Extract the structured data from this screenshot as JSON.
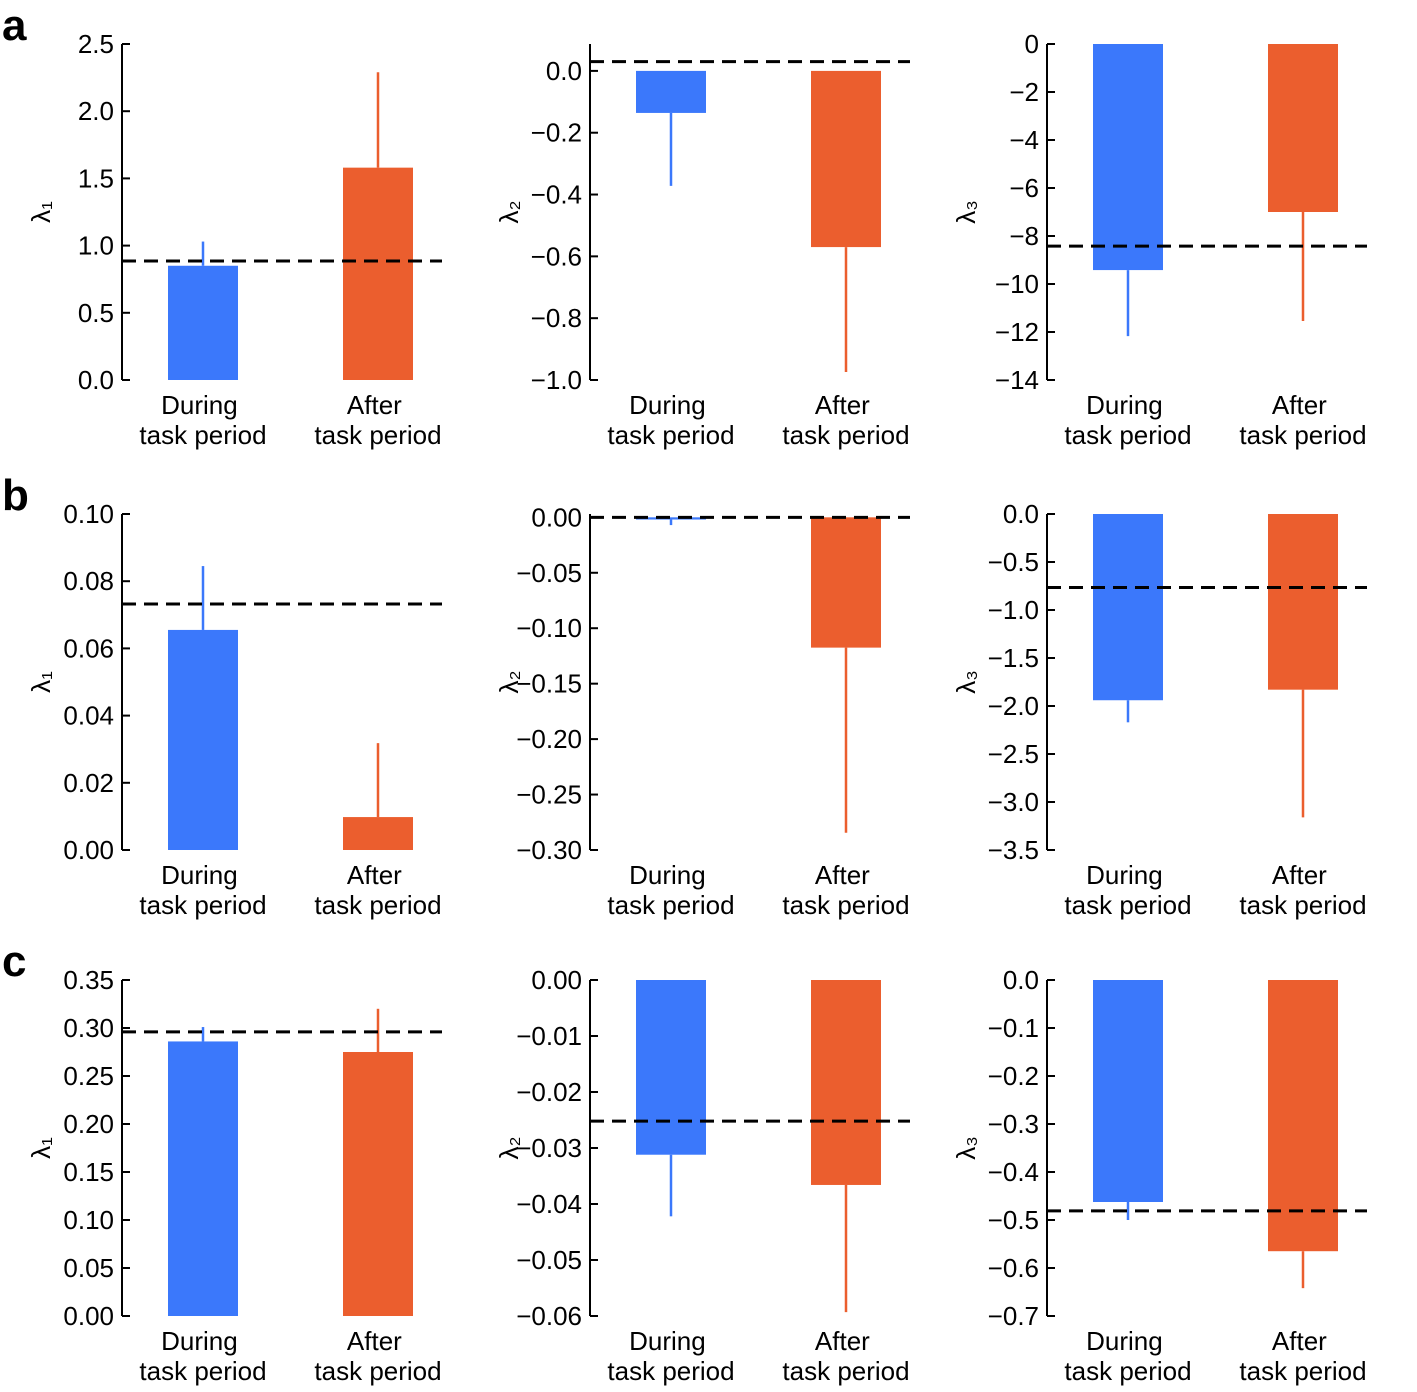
{
  "panel_labels": [
    "a",
    "b",
    "c"
  ],
  "chart_data": [
    {
      "type": "bar",
      "ylabel": "λ₁",
      "categories": [
        "During task period",
        "After task period"
      ],
      "values": [
        0.85,
        1.58
      ],
      "errors": [
        0.18,
        0.71
      ],
      "colors": [
        "#3b78fb",
        "#eb5e2e"
      ],
      "reference": 0.885,
      "ylim": [
        0,
        2.5
      ],
      "yticks": [
        {
          "value": 0,
          "label": "0.0"
        },
        0.5,
        {
          "value": 1,
          "label": "1.0"
        },
        1.5,
        {
          "value": 2,
          "label": "2.0"
        },
        2.5
      ]
    },
    {
      "type": "bar",
      "ylabel": "λ₂",
      "categories": [
        "During task period",
        "After task period"
      ],
      "values": [
        -0.136,
        -0.57
      ],
      "errors": [
        0.236,
        0.404
      ],
      "colors": [
        "#3b78fb",
        "#eb5e2e"
      ],
      "reference": 0.03,
      "ylim": [
        -1,
        0.087
      ],
      "yticks": [
        {
          "value": 0,
          "label": "0.0"
        },
        {
          "value": -0.2,
          "label": "−0.2"
        },
        {
          "value": -0.4,
          "label": "−0.4"
        },
        {
          "value": -0.6,
          "label": "−0.6"
        },
        {
          "value": -0.8,
          "label": "−0.8"
        },
        {
          "value": -1,
          "label": "−1.0"
        }
      ]
    },
    {
      "type": "bar",
      "ylabel": "λ₃",
      "categories": [
        "During task period",
        "After task period"
      ],
      "values": [
        -9.42,
        -7.0
      ],
      "errors": [
        2.75,
        4.54
      ],
      "colors": [
        "#3b78fb",
        "#eb5e2e"
      ],
      "reference": -8.42,
      "ylim": [
        -14,
        0
      ],
      "yticks": [
        0,
        {
          "value": -2,
          "label": "−2"
        },
        {
          "value": -4,
          "label": "−4"
        },
        {
          "value": -6,
          "label": "−6"
        },
        {
          "value": -8,
          "label": "−8"
        },
        {
          "value": -10,
          "label": "−10"
        },
        {
          "value": -12,
          "label": "−12"
        },
        {
          "value": -14,
          "label": "−14"
        }
      ]
    },
    {
      "type": "bar",
      "ylabel": "λ₁",
      "categories": [
        "During task period",
        "After task period"
      ],
      "values": [
        0.0655,
        0.0098
      ],
      "errors": [
        0.019,
        0.022
      ],
      "colors": [
        "#3b78fb",
        "#eb5e2e"
      ],
      "reference": 0.0732,
      "ylim": [
        0,
        0.1
      ],
      "yticks": [
        {
          "value": 0,
          "label": "0.00"
        },
        0.02,
        0.04,
        0.06,
        0.08,
        {
          "value": 0.1,
          "label": "0.10"
        }
      ]
    },
    {
      "type": "bar",
      "ylabel": "λ₂",
      "categories": [
        "During task period",
        "After task period"
      ],
      "values": [
        -0.002,
        -0.1175
      ],
      "errors": [
        0.005,
        0.167
      ],
      "colors": [
        "#3b78fb",
        "#eb5e2e"
      ],
      "reference": 0,
      "ylim": [
        -0.3,
        0.003
      ],
      "yticks": [
        {
          "value": 0,
          "label": "0.00"
        },
        {
          "value": -0.05,
          "label": "−0.05"
        },
        {
          "value": -0.1,
          "label": "−0.10"
        },
        {
          "value": -0.15,
          "label": "−0.15"
        },
        {
          "value": -0.2,
          "label": "−0.20"
        },
        {
          "value": -0.25,
          "label": "−0.25"
        },
        {
          "value": -0.3,
          "label": "−0.30"
        }
      ]
    },
    {
      "type": "bar",
      "ylabel": "λ₃",
      "categories": [
        "During task period",
        "After task period"
      ],
      "values": [
        -1.94,
        -1.83
      ],
      "errors": [
        0.23,
        1.33
      ],
      "colors": [
        "#3b78fb",
        "#eb5e2e"
      ],
      "reference": -0.765,
      "ylim": [
        -3.5,
        0
      ],
      "yticks": [
        {
          "value": 0,
          "label": "0.0"
        },
        {
          "value": -0.5,
          "label": "−0.5"
        },
        {
          "value": -1,
          "label": "−1.0"
        },
        {
          "value": -1.5,
          "label": "−1.5"
        },
        {
          "value": -2,
          "label": "−2.0"
        },
        {
          "value": -2.5,
          "label": "−2.5"
        },
        {
          "value": -3,
          "label": "−3.0"
        },
        {
          "value": -3.5,
          "label": "−3.5"
        }
      ]
    },
    {
      "type": "bar",
      "ylabel": "λ₁",
      "categories": [
        "During task period",
        "After task period"
      ],
      "values": [
        0.286,
        0.275
      ],
      "errors": [
        0.015,
        0.045
      ],
      "colors": [
        "#3b78fb",
        "#eb5e2e"
      ],
      "reference": 0.296,
      "ylim": [
        0,
        0.35
      ],
      "yticks": [
        {
          "value": 0,
          "label": "0.00"
        },
        0.05,
        {
          "value": 0.1,
          "label": "0.10"
        },
        0.15,
        {
          "value": 0.2,
          "label": "0.20"
        },
        0.25,
        {
          "value": 0.3,
          "label": "0.30"
        },
        0.35
      ]
    },
    {
      "type": "bar",
      "ylabel": "λ₂",
      "categories": [
        "During task period",
        "After task period"
      ],
      "values": [
        -0.0312,
        -0.0366
      ],
      "errors": [
        0.011,
        0.0227
      ],
      "colors": [
        "#3b78fb",
        "#eb5e2e"
      ],
      "reference": -0.0252,
      "ylim": [
        -0.06,
        0
      ],
      "yticks": [
        {
          "value": 0,
          "label": "0.00"
        },
        {
          "value": -0.01,
          "label": "−0.01"
        },
        {
          "value": -0.02,
          "label": "−0.02"
        },
        {
          "value": -0.03,
          "label": "−0.03"
        },
        {
          "value": -0.04,
          "label": "−0.04"
        },
        {
          "value": -0.05,
          "label": "−0.05"
        },
        {
          "value": -0.06,
          "label": "−0.06"
        }
      ]
    },
    {
      "type": "bar",
      "ylabel": "λ₃",
      "categories": [
        "During task period",
        "After task period"
      ],
      "values": [
        -0.4625,
        -0.565
      ],
      "errors": [
        0.0375,
        0.077
      ],
      "colors": [
        "#3b78fb",
        "#eb5e2e"
      ],
      "reference": -0.481,
      "ylim": [
        -0.7,
        0
      ],
      "yticks": [
        {
          "value": 0,
          "label": "0.0"
        },
        {
          "value": -0.1,
          "label": "−0.1"
        },
        {
          "value": -0.2,
          "label": "−0.2"
        },
        {
          "value": -0.3,
          "label": "−0.3"
        },
        {
          "value": -0.4,
          "label": "−0.4"
        },
        {
          "value": -0.5,
          "label": "−0.5"
        },
        {
          "value": -0.6,
          "label": "−0.6"
        },
        {
          "value": -0.7,
          "label": "−0.7"
        }
      ]
    }
  ]
}
